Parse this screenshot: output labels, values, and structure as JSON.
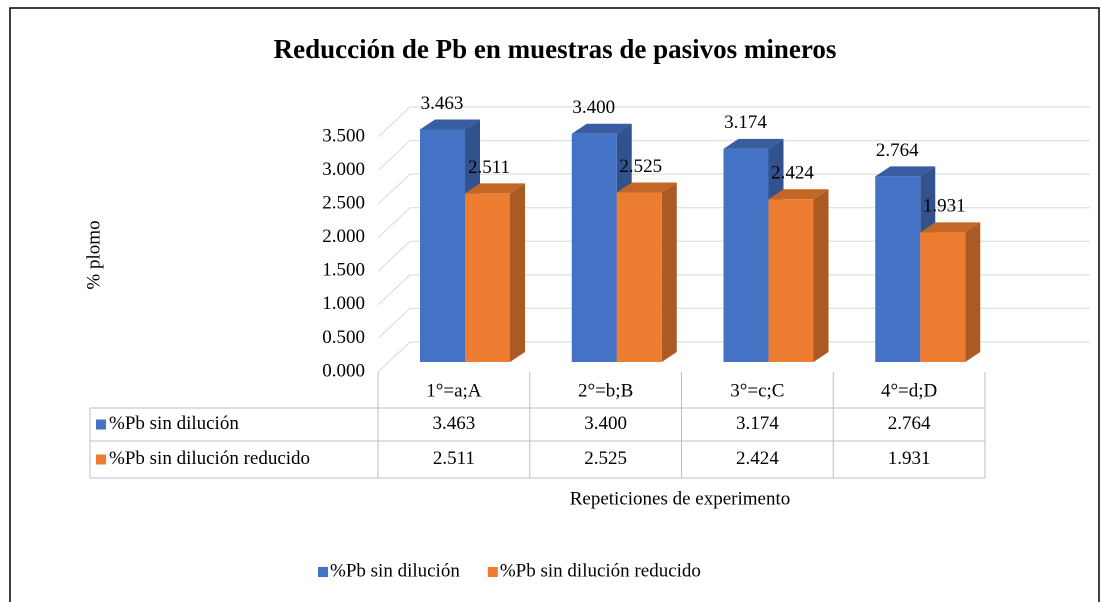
{
  "chart_data": {
    "type": "bar3d",
    "title": "Reducción de Pb en muestras de pasivos mineros",
    "y_label": "% plomo",
    "x_label": "Repeticiones de experimento",
    "categories": [
      "1°=a;A",
      "2°=b;B",
      "3°=c;C",
      "4°=d;D"
    ],
    "series": [
      {
        "name": "%Pb sin dilución",
        "color": "#4472c4",
        "values": [
          3.463,
          3.4,
          3.174,
          2.764
        ],
        "value_labels": [
          "3.463",
          "3.400",
          "3.174",
          "2.764"
        ]
      },
      {
        "name": "%Pb sin dilución reducido",
        "color": "#ed7d31",
        "values": [
          2.511,
          2.525,
          2.424,
          1.931
        ],
        "value_labels": [
          "2.511",
          "2.525",
          "2.424",
          "1.931"
        ]
      }
    ],
    "ylim": [
      0,
      3.5
    ],
    "yticks": [
      {
        "value": 0,
        "label": "0.000"
      },
      {
        "value": 0.5,
        "label": "0.500"
      },
      {
        "value": 1,
        "label": "1.000"
      },
      {
        "value": 1.5,
        "label": "1.500"
      },
      {
        "value": 2,
        "label": "2.000"
      },
      {
        "value": 2.5,
        "label": "2.500"
      },
      {
        "value": 3,
        "label": "3.000"
      },
      {
        "value": 3.5,
        "label": "3.500"
      }
    ],
    "grid": true,
    "legend": "bottom",
    "data_table": true
  }
}
